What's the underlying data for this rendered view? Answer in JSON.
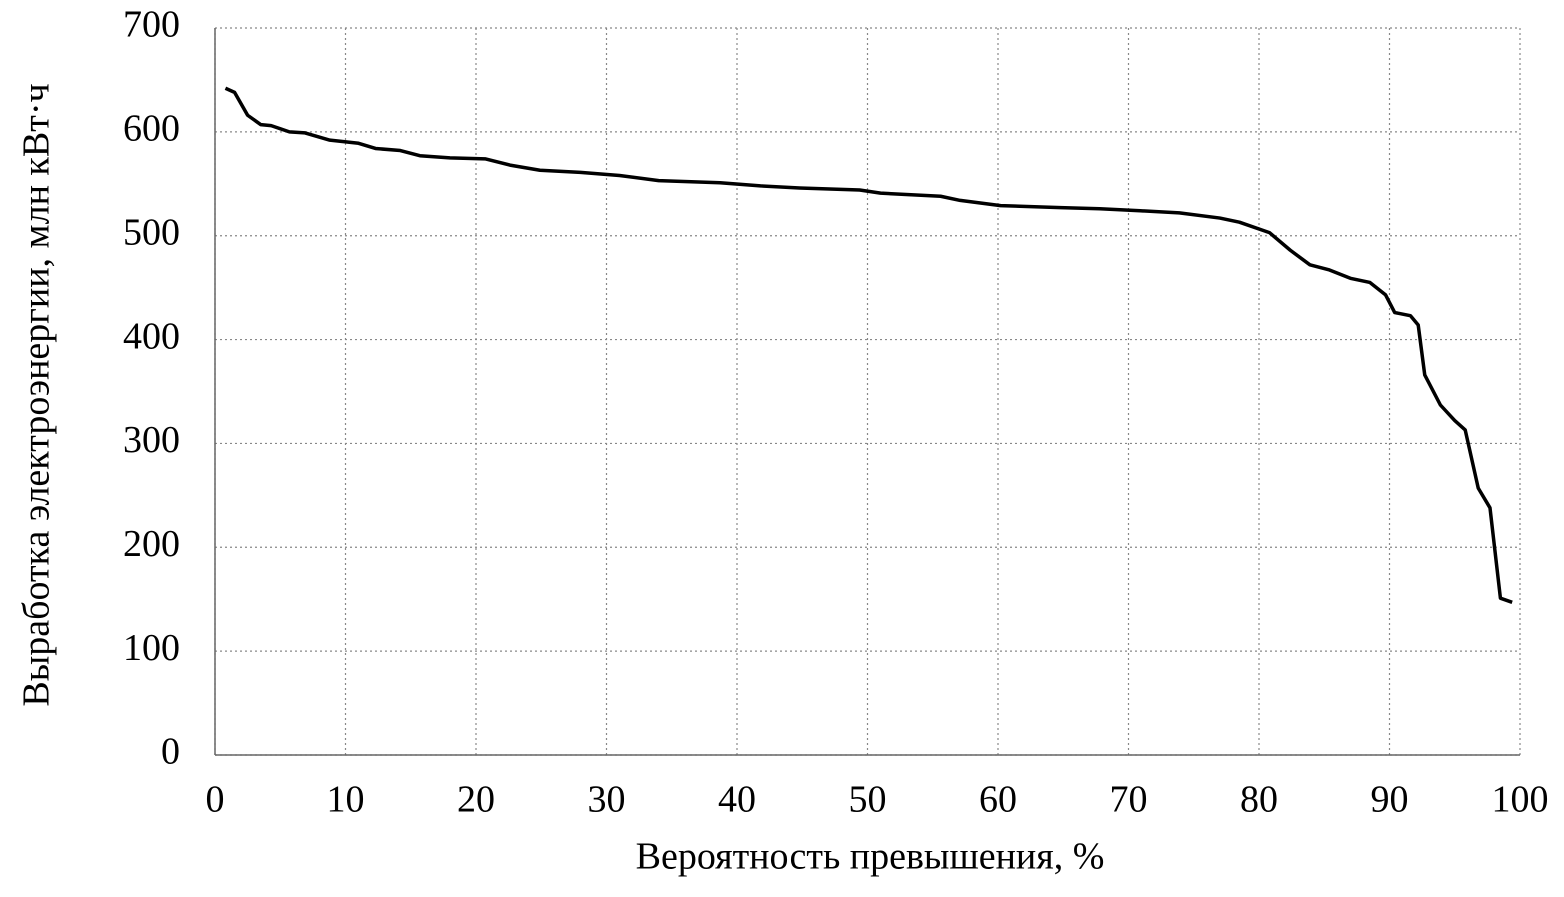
{
  "chart_data": {
    "type": "line",
    "x_label": "Вероятность превышения, %",
    "y_label": "Выработка электроэнергии, млн кВт·ч",
    "xlim": [
      0,
      100
    ],
    "xticks": [
      0,
      10,
      20,
      30,
      40,
      50,
      60,
      70,
      80,
      90,
      100
    ],
    "ylim": [
      0,
      700
    ],
    "yticks": [
      0,
      100,
      200,
      300,
      400,
      500,
      600,
      700
    ],
    "grid": true,
    "series": [
      {
        "color": "#000000",
        "x": [
          0.8,
          1.5,
          2.5,
          3.5,
          4.3,
          5.7,
          6.9,
          8.8,
          11,
          12.3,
          14.2,
          15.7,
          18,
          20.7,
          22.6,
          24.9,
          28,
          31,
          34,
          38.7,
          41.8,
          44.8,
          49.4,
          51,
          55.6,
          57.1,
          60.2,
          64.8,
          67.8,
          70.9,
          73.9,
          77,
          78.5,
          80.8,
          82.4,
          83.9,
          85.4,
          87,
          88.5,
          89.7,
          90.4,
          91.6,
          92.2,
          92.7,
          93.9,
          95,
          95.8,
          96.8,
          97.7,
          98.5,
          99.4
        ],
        "values": [
          642,
          638,
          616,
          607,
          606,
          600,
          599,
          592,
          589,
          584,
          582,
          577,
          575,
          574,
          568,
          563,
          561,
          558,
          553,
          551,
          548,
          546,
          544,
          541,
          538,
          534,
          529,
          527,
          526,
          524,
          522,
          517,
          513,
          503,
          486,
          472,
          467,
          459,
          455,
          443,
          426,
          423,
          414,
          366,
          337,
          322,
          313,
          257,
          238,
          151,
          147
        ]
      }
    ]
  }
}
